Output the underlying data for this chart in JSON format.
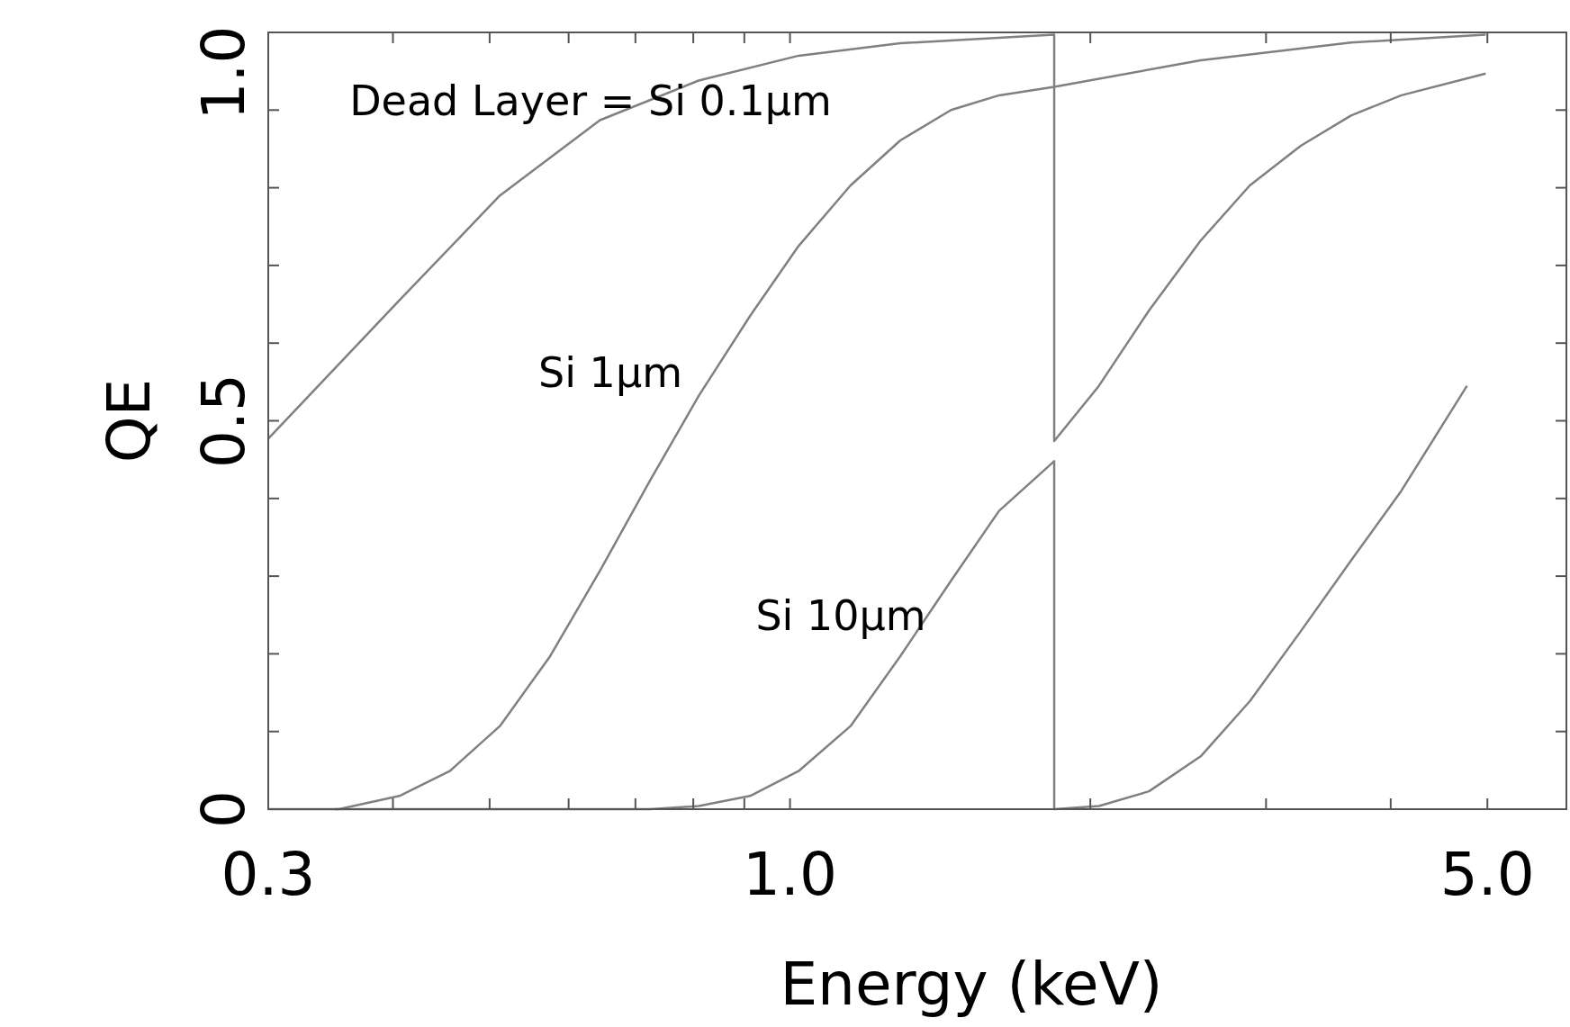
{
  "chart_data": {
    "type": "line",
    "xlabel": "Energy (keV)",
    "ylabel": "QE",
    "log": "x",
    "xlim": [
      0.3,
      6.0
    ],
    "xticks": [
      {
        "value": 0.3,
        "label": "0.3"
      },
      {
        "value": 0.4,
        "label": null
      },
      {
        "value": 0.5,
        "label": null
      },
      {
        "value": 0.6,
        "label": null
      },
      {
        "value": 0.7,
        "label": null
      },
      {
        "value": 0.8,
        "label": null
      },
      {
        "value": 0.9,
        "label": null
      },
      {
        "value": 1,
        "label": "1.0"
      },
      {
        "value": 2,
        "label": null
      },
      {
        "value": 3,
        "label": null
      },
      {
        "value": 4,
        "label": null
      },
      {
        "value": 5,
        "label": "5.0"
      }
    ],
    "ylim": [
      0,
      1
    ],
    "yticks": [
      0,
      {
        "value": 0.1,
        "label": null
      },
      {
        "value": 0.2,
        "label": null
      },
      {
        "value": 0.3,
        "label": null
      },
      {
        "value": 0.4,
        "label": null
      },
      0.5,
      {
        "value": 0.6,
        "label": null
      },
      {
        "value": 0.7,
        "label": null
      },
      {
        "value": 0.8,
        "label": null
      },
      {
        "value": 0.9,
        "label": null
      },
      {
        "value": 1,
        "label": "1.0"
      }
    ],
    "grid": false,
    "marker": "none",
    "line_style": "solid",
    "series": [
      {
        "color": "#808080",
        "x": [
          0.3,
          0.406,
          0.512,
          0.645,
          0.81,
          1.02,
          1.29,
          1.84,
          1.84,
          2.58,
          3.65,
          4.98
        ],
        "values": [
          0.477,
          0.655,
          0.79,
          0.887,
          0.938,
          0.97,
          0.986,
          0.997,
          0.93,
          0.964,
          0.987,
          0.997
        ]
      },
      {
        "color": "#808080",
        "x": [
          0.3,
          0.353,
          0.406,
          0.456,
          0.512,
          0.575,
          0.645,
          0.724,
          0.81,
          0.912,
          1.02,
          1.15,
          1.29,
          1.45,
          1.62,
          1.84,
          1.84,
          2.04,
          2.29,
          2.58,
          2.89,
          3.25,
          3.65,
          4.1,
          4.98
        ],
        "values": [
          0,
          0,
          0.017,
          0.049,
          0.107,
          0.197,
          0.307,
          0.423,
          0.532,
          0.635,
          0.725,
          0.803,
          0.861,
          0.9,
          0.919,
          0.93,
          0.474,
          0.545,
          0.642,
          0.732,
          0.803,
          0.854,
          0.893,
          0.919,
          0.947
        ]
      },
      {
        "color": "#808080",
        "x": [
          0.35,
          0.724,
          0.81,
          0.912,
          1.02,
          1.15,
          1.29,
          1.45,
          1.62,
          1.84,
          1.84,
          2.04,
          2.29,
          2.58,
          2.89,
          3.25,
          3.65,
          4.1,
          4.77
        ],
        "values": [
          0,
          0,
          0.004,
          0.017,
          0.049,
          0.107,
          0.197,
          0.294,
          0.384,
          0.448,
          0,
          0.004,
          0.023,
          0.068,
          0.139,
          0.229,
          0.32,
          0.41,
          0.545
        ]
      }
    ],
    "annotations": [
      "Dead Layer = Si 0.1µm",
      "Si 1µm",
      "Si 10µm"
    ]
  }
}
